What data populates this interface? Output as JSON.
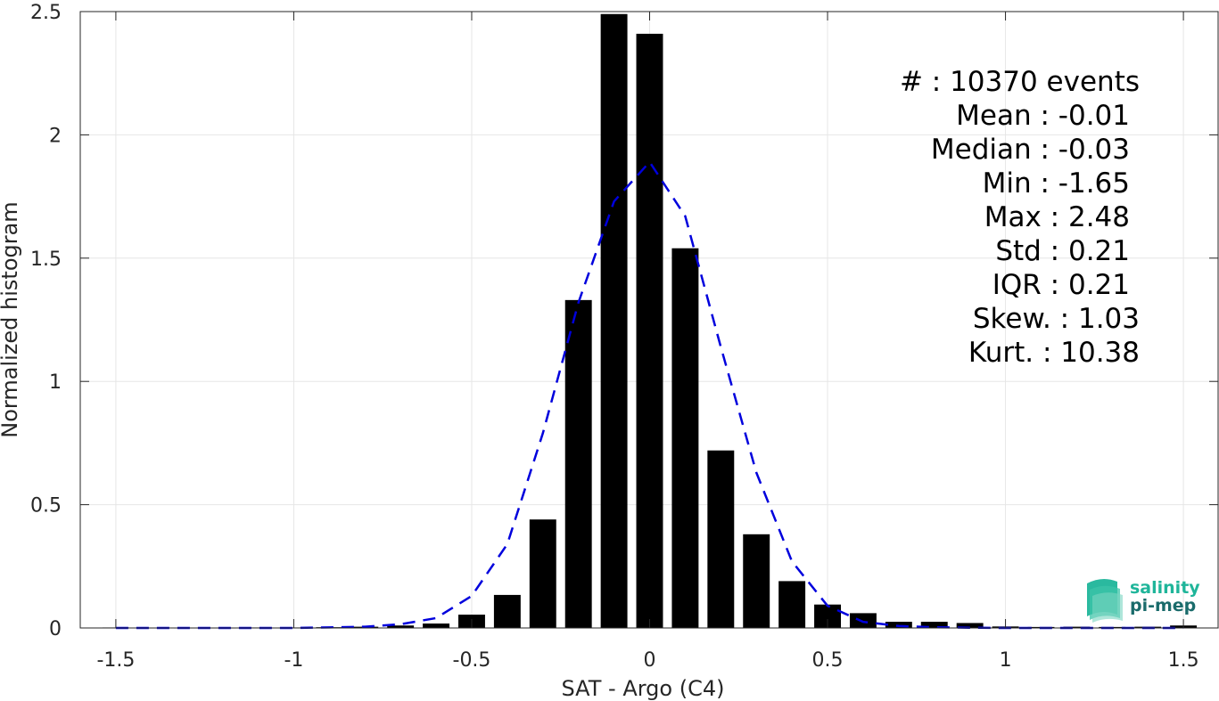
{
  "chart_data": {
    "type": "bar",
    "xlabel": "SAT - Argo (C4)",
    "ylabel": "Normalized histogram",
    "xlim": [
      -1.6,
      1.6
    ],
    "ylim": [
      0,
      2.5
    ],
    "grid": true,
    "xticks": [
      -1.5,
      -1,
      -0.5,
      0,
      0.5,
      1,
      1.5
    ],
    "xtick_labels": [
      "-1.5",
      "-1",
      "-0.5",
      "0",
      "0.5",
      "1",
      "1.5"
    ],
    "yticks": [
      0,
      0.5,
      1,
      1.5,
      2,
      2.5
    ],
    "ytick_labels": [
      "0",
      "0.5",
      "1",
      "1.5",
      "2",
      "2.5"
    ],
    "bar_width": 0.075,
    "bars": {
      "x": [
        -1.5,
        -1.4,
        -1.3,
        -1.2,
        -1.1,
        -1.0,
        -0.9,
        -0.8,
        -0.7,
        -0.6,
        -0.5,
        -0.4,
        -0.3,
        -0.2,
        -0.1,
        0.0,
        0.1,
        0.2,
        0.3,
        0.4,
        0.5,
        0.6,
        0.7,
        0.8,
        0.9,
        1.0,
        1.1,
        1.2,
        1.3,
        1.4,
        1.5
      ],
      "values": [
        0.002,
        0.001,
        0.001,
        0.001,
        0.002,
        0.002,
        0.003,
        0.005,
        0.01,
        0.018,
        0.054,
        0.134,
        0.44,
        1.33,
        2.49,
        2.41,
        1.54,
        0.72,
        0.38,
        0.19,
        0.095,
        0.06,
        0.025,
        0.025,
        0.02,
        0.006,
        0.004,
        0.005,
        0.004,
        0.005,
        0.01
      ],
      "color": "#000000"
    },
    "fit_curve": {
      "style": "dashed",
      "color": "#0000dd",
      "x": [
        -1.5,
        -1.4,
        -1.3,
        -1.2,
        -1.1,
        -1.0,
        -0.9,
        -0.8,
        -0.7,
        -0.6,
        -0.5,
        -0.4,
        -0.3,
        -0.2,
        -0.1,
        0.0,
        0.1,
        0.2,
        0.3,
        0.4,
        0.5,
        0.6,
        0.7,
        0.8,
        0.9,
        1.0,
        1.1,
        1.2,
        1.3,
        1.4,
        1.5
      ],
      "y": [
        0.0,
        0.0,
        0.0,
        0.0,
        0.0,
        0.0,
        0.002,
        0.005,
        0.015,
        0.04,
        0.13,
        0.34,
        0.79,
        1.32,
        1.73,
        1.89,
        1.67,
        1.14,
        0.63,
        0.27,
        0.09,
        0.025,
        0.008,
        0.003,
        0.001,
        0.0,
        0.0,
        0.0,
        0.0,
        0.0,
        0.0
      ]
    },
    "annotations": [
      "#  : 10370 events",
      "Mean : -0.01",
      "Median : -0.03",
      "Min : -1.65",
      "Max : 2.48",
      "Std : 0.21",
      "IQR : 0.21",
      "Skew. : 1.03",
      "Kurt. : 10.38"
    ]
  },
  "logo": {
    "line1": "salinity",
    "line2": "pi-mep",
    "color1": "#1fb59a",
    "color2": "#1a6b6b"
  }
}
